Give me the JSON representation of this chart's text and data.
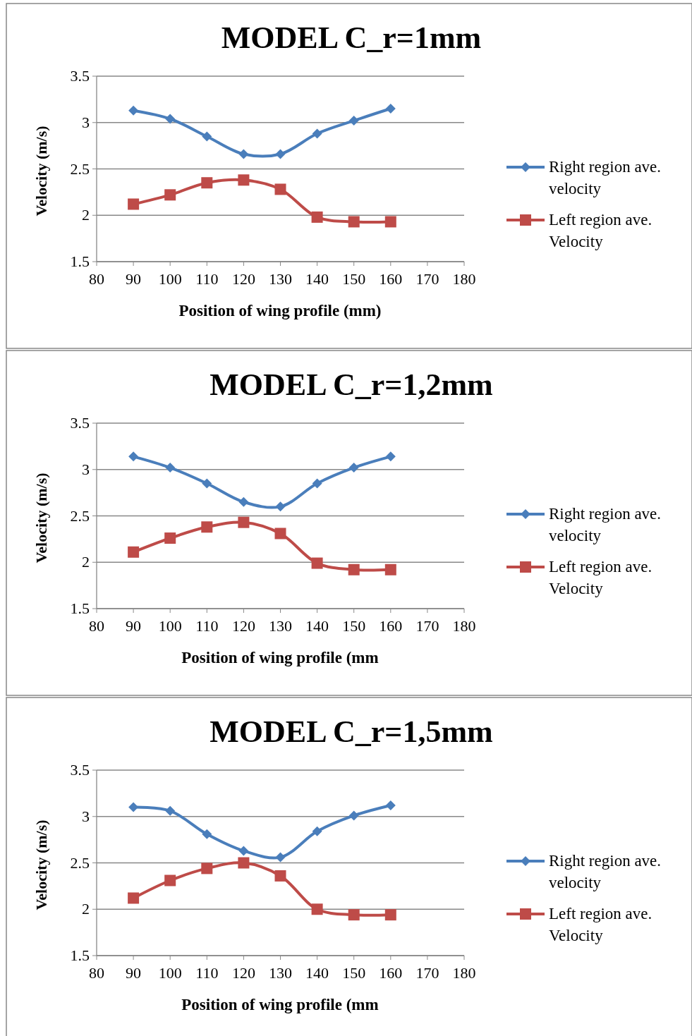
{
  "chart_data": [
    {
      "type": "line",
      "title": "MODEL C_r=1mm",
      "xlabel": "Position of wing profile (mm)",
      "ylabel": "Velocity (m/s)",
      "x": [
        90,
        100,
        110,
        120,
        130,
        140,
        150,
        160
      ],
      "xlim": [
        80,
        180
      ],
      "xticks": [
        80,
        90,
        100,
        110,
        120,
        130,
        140,
        150,
        160,
        170,
        180
      ],
      "ylim": [
        1.5,
        3.5
      ],
      "yticks": [
        1.5,
        2,
        2.5,
        3,
        3.5
      ],
      "grid": "y",
      "legend": "right",
      "series": [
        {
          "name": "Right region ave. velocity",
          "color": "#4a7ebb",
          "marker": "diamond",
          "values": [
            3.13,
            3.04,
            2.85,
            2.66,
            2.66,
            2.88,
            3.02,
            3.15
          ]
        },
        {
          "name": "Left region ave. Velocity",
          "color": "#be4b48",
          "marker": "square",
          "values": [
            2.12,
            2.22,
            2.35,
            2.38,
            2.28,
            1.98,
            1.93,
            1.93
          ]
        }
      ]
    },
    {
      "type": "line",
      "title": "MODEL C_r=1,2mm",
      "xlabel": "Position of wing profile (mm",
      "ylabel": "Velocity (m/s)",
      "x": [
        90,
        100,
        110,
        120,
        130,
        140,
        150,
        160
      ],
      "xlim": [
        80,
        180
      ],
      "xticks": [
        80,
        90,
        100,
        110,
        120,
        130,
        140,
        150,
        160,
        170,
        180
      ],
      "ylim": [
        1.5,
        3.5
      ],
      "yticks": [
        1.5,
        2,
        2.5,
        3,
        3.5
      ],
      "grid": "y",
      "legend": "right",
      "series": [
        {
          "name": "Right region ave. velocity",
          "color": "#4a7ebb",
          "marker": "diamond",
          "values": [
            3.14,
            3.02,
            2.85,
            2.65,
            2.6,
            2.85,
            3.02,
            3.14
          ]
        },
        {
          "name": "Left region ave. Velocity",
          "color": "#be4b48",
          "marker": "square",
          "values": [
            2.11,
            2.26,
            2.38,
            2.43,
            2.31,
            1.99,
            1.92,
            1.92
          ]
        }
      ]
    },
    {
      "type": "line",
      "title": "MODEL C_r=1,5mm",
      "xlabel": "Position of wing profile (mm",
      "ylabel": "Velocity (m/s)",
      "x": [
        90,
        100,
        110,
        120,
        130,
        140,
        150,
        160
      ],
      "xlim": [
        80,
        180
      ],
      "xticks": [
        80,
        90,
        100,
        110,
        120,
        130,
        140,
        150,
        160,
        170,
        180
      ],
      "ylim": [
        1.5,
        3.5
      ],
      "yticks": [
        1.5,
        2,
        2.5,
        3,
        3.5
      ],
      "grid": "y",
      "legend": "right",
      "series": [
        {
          "name": "Right region ave. velocity",
          "color": "#4a7ebb",
          "marker": "diamond",
          "values": [
            3.1,
            3.06,
            2.81,
            2.63,
            2.56,
            2.84,
            3.01,
            3.12
          ]
        },
        {
          "name": "Left region ave. Velocity",
          "color": "#be4b48",
          "marker": "square",
          "values": [
            2.12,
            2.31,
            2.44,
            2.5,
            2.36,
            2.0,
            1.94,
            1.94
          ]
        }
      ]
    }
  ]
}
